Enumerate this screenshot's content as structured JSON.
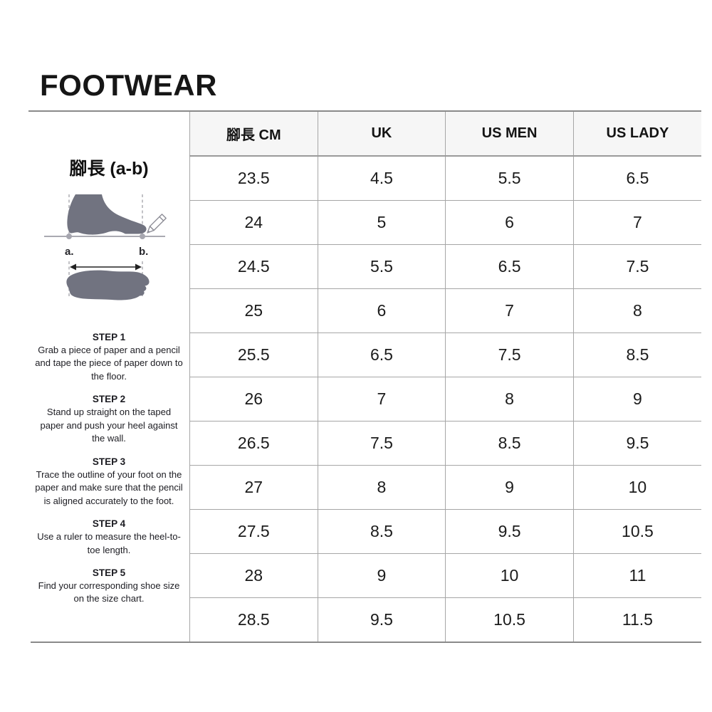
{
  "page": {
    "title": "FOOTWEAR"
  },
  "sidebar": {
    "measure_title": "腳長 (a-b)",
    "diagram": {
      "label_a": "a.",
      "label_b": "b."
    },
    "steps": [
      {
        "title": "STEP 1",
        "text": "Grab a piece of paper and a pencil and tape the piece of paper down to the floor."
      },
      {
        "title": "STEP 2",
        "text": "Stand up straight on the taped paper and push your heel against the wall."
      },
      {
        "title": "STEP 3",
        "text": "Trace the outline of your foot on the paper and make sure that the pencil is aligned accurately to the foot."
      },
      {
        "title": "STEP 4",
        "text": "Use a ruler to measure the heel-to-toe length."
      },
      {
        "title": "STEP 5",
        "text": "Find your corresponding shoe size on the size chart."
      }
    ]
  },
  "size_table": {
    "headers": [
      "腳長 CM",
      "UK",
      "US MEN",
      "US LADY"
    ],
    "rows": [
      [
        "23.5",
        "4.5",
        "5.5",
        "6.5"
      ],
      [
        "24",
        "5",
        "6",
        "7"
      ],
      [
        "24.5",
        "5.5",
        "6.5",
        "7.5"
      ],
      [
        "25",
        "6",
        "7",
        "8"
      ],
      [
        "25.5",
        "6.5",
        "7.5",
        "8.5"
      ],
      [
        "26",
        "7",
        "8",
        "9"
      ],
      [
        "26.5",
        "7.5",
        "8.5",
        "9.5"
      ],
      [
        "27",
        "8",
        "9",
        "10"
      ],
      [
        "27.5",
        "8.5",
        "9.5",
        "10.5"
      ],
      [
        "28",
        "9",
        "10",
        "11"
      ],
      [
        "28.5",
        "9.5",
        "10.5",
        "11.5"
      ]
    ]
  },
  "colors": {
    "foot_silhouette": "#717380",
    "table_border": "#a6a6a6",
    "rule": "#8a8a8a",
    "header_background": "#f6f6f6",
    "text": "#1a1a1a"
  }
}
